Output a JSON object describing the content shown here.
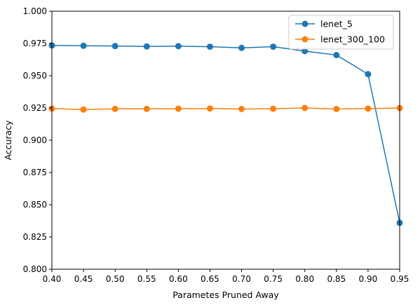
{
  "chart_data": {
    "type": "line",
    "title": "",
    "xlabel": "Parametes Pruned Away",
    "ylabel": "Accuracy",
    "xlim": [
      0.4,
      0.95
    ],
    "ylim": [
      0.8,
      1.0
    ],
    "x_ticks": [
      "0.40",
      "0.45",
      "0.50",
      "0.55",
      "0.60",
      "0.65",
      "0.70",
      "0.75",
      "0.80",
      "0.85",
      "0.90",
      "0.95"
    ],
    "y_ticks": [
      "0.800",
      "0.825",
      "0.850",
      "0.875",
      "0.900",
      "0.925",
      "0.950",
      "0.975",
      "1.000"
    ],
    "x": [
      0.4,
      0.45,
      0.5,
      0.55,
      0.6,
      0.65,
      0.7,
      0.75,
      0.8,
      0.85,
      0.9,
      0.95
    ],
    "series": [
      {
        "name": "lenet_5",
        "color": "#1f77b4",
        "values": [
          0.9735,
          0.9732,
          0.973,
          0.9727,
          0.9729,
          0.9725,
          0.9716,
          0.9725,
          0.9691,
          0.966,
          0.9512,
          0.836
        ]
      },
      {
        "name": "lenet_300_100",
        "color": "#ff7f0e",
        "values": [
          0.9245,
          0.9238,
          0.9243,
          0.9243,
          0.9244,
          0.9246,
          0.9242,
          0.9244,
          0.925,
          0.9242,
          0.9245,
          0.9249
        ]
      }
    ],
    "grid": false,
    "legend_position": "top-right"
  }
}
